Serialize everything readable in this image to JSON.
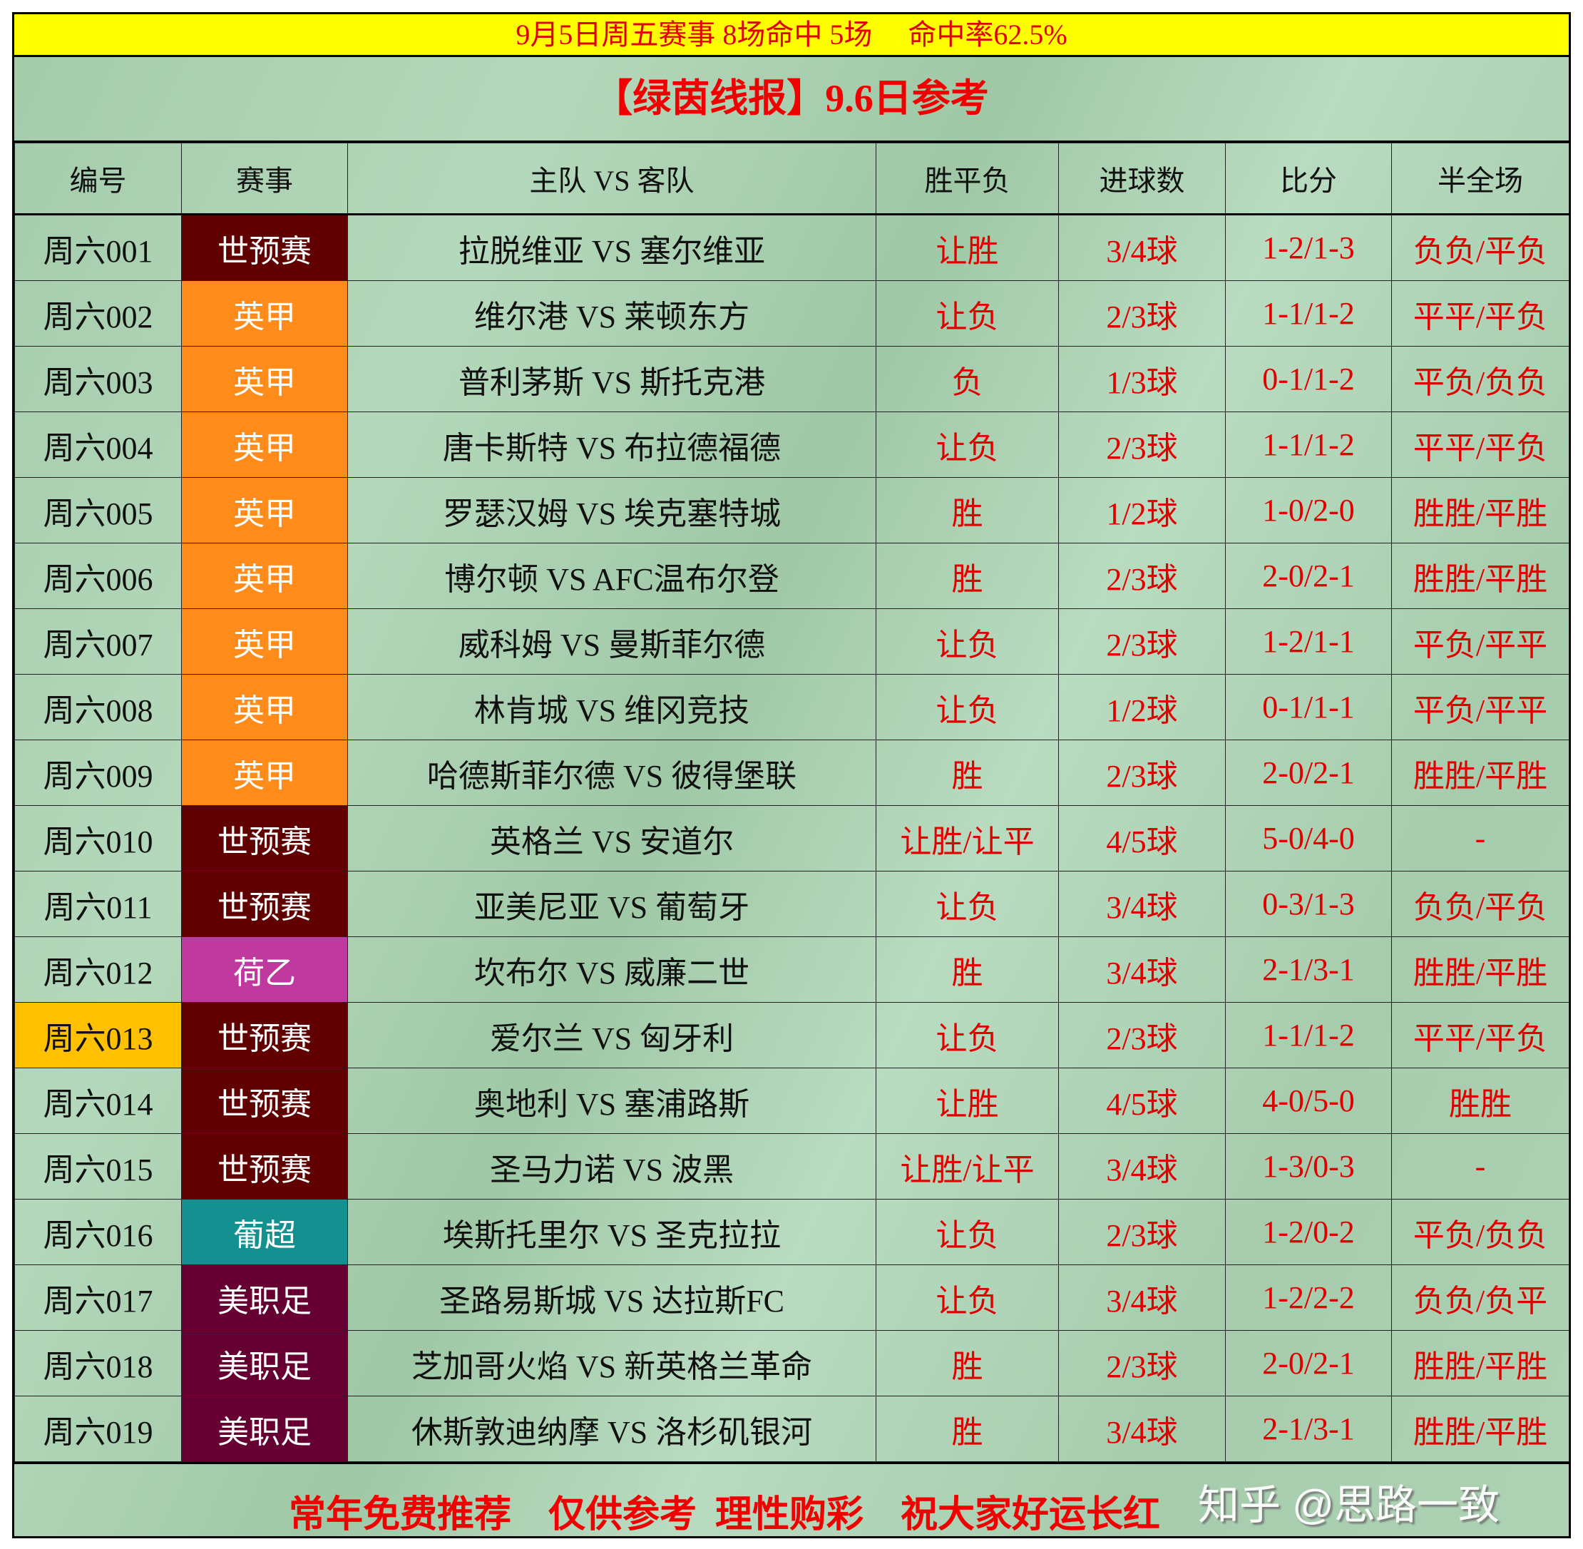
{
  "summary": "9月5日周五赛事 8场命中 5场     命中率62.5%",
  "title": "【绿茵线报】9.6日参考",
  "headers": [
    "编号",
    "赛事",
    "主队 VS 客队",
    "胜平负",
    "进球数",
    "比分",
    "半全场"
  ],
  "league_colors": {
    "世预赛": "#600000",
    "英甲": "#ff8c1a",
    "荷乙": "#c0399f",
    "葡超": "#13908f",
    "美职足": "#660033"
  },
  "highlight_color": "#ffc000",
  "rows": [
    {
      "id": "周六001",
      "league": "世预赛",
      "match": "拉脱维亚 VS 塞尔维亚",
      "result": "让胜",
      "goals": "3/4球",
      "score": "1-2/1-3",
      "htft": "负负/平负"
    },
    {
      "id": "周六002",
      "league": "英甲",
      "match": "维尔港 VS 莱顿东方",
      "result": "让负",
      "goals": "2/3球",
      "score": "1-1/1-2",
      "htft": "平平/平负"
    },
    {
      "id": "周六003",
      "league": "英甲",
      "match": "普利茅斯 VS 斯托克港",
      "result": "负",
      "goals": "1/3球",
      "score": "0-1/1-2",
      "htft": "平负/负负"
    },
    {
      "id": "周六004",
      "league": "英甲",
      "match": "唐卡斯特 VS 布拉德福德",
      "result": "让负",
      "goals": "2/3球",
      "score": "1-1/1-2",
      "htft": "平平/平负"
    },
    {
      "id": "周六005",
      "league": "英甲",
      "match": "罗瑟汉姆 VS 埃克塞特城",
      "result": "胜",
      "goals": "1/2球",
      "score": "1-0/2-0",
      "htft": "胜胜/平胜"
    },
    {
      "id": "周六006",
      "league": "英甲",
      "match": "博尔顿 VS AFC温布尔登",
      "result": "胜",
      "goals": "2/3球",
      "score": "2-0/2-1",
      "htft": "胜胜/平胜"
    },
    {
      "id": "周六007",
      "league": "英甲",
      "match": "威科姆 VS 曼斯菲尔德",
      "result": "让负",
      "goals": "2/3球",
      "score": "1-2/1-1",
      "htft": "平负/平平"
    },
    {
      "id": "周六008",
      "league": "英甲",
      "match": "林肯城 VS 维冈竞技",
      "result": "让负",
      "goals": "1/2球",
      "score": "0-1/1-1",
      "htft": "平负/平平"
    },
    {
      "id": "周六009",
      "league": "英甲",
      "match": "哈德斯菲尔德 VS 彼得堡联",
      "result": "胜",
      "goals": "2/3球",
      "score": "2-0/2-1",
      "htft": "胜胜/平胜"
    },
    {
      "id": "周六010",
      "league": "世预赛",
      "match": "英格兰 VS 安道尔",
      "result": "让胜/让平",
      "goals": "4/5球",
      "score": "5-0/4-0",
      "htft": "-"
    },
    {
      "id": "周六011",
      "league": "世预赛",
      "match": "亚美尼亚 VS 葡萄牙",
      "result": "让负",
      "goals": "3/4球",
      "score": "0-3/1-3",
      "htft": "负负/平负"
    },
    {
      "id": "周六012",
      "league": "荷乙",
      "match": "坎布尔 VS 威廉二世",
      "result": "胜",
      "goals": "3/4球",
      "score": "2-1/3-1",
      "htft": "胜胜/平胜"
    },
    {
      "id": "周六013",
      "league": "世预赛",
      "match": "爱尔兰 VS 匈牙利",
      "result": "让负",
      "goals": "2/3球",
      "score": "1-1/1-2",
      "htft": "平平/平负",
      "highlight": true
    },
    {
      "id": "周六014",
      "league": "世预赛",
      "match": "奥地利 VS 塞浦路斯",
      "result": "让胜",
      "goals": "4/5球",
      "score": "4-0/5-0",
      "htft": "胜胜"
    },
    {
      "id": "周六015",
      "league": "世预赛",
      "match": "圣马力诺 VS 波黑",
      "result": "让胜/让平",
      "goals": "3/4球",
      "score": "1-3/0-3",
      "htft": "-"
    },
    {
      "id": "周六016",
      "league": "葡超",
      "match": "埃斯托里尔 VS 圣克拉拉",
      "result": "让负",
      "goals": "2/3球",
      "score": "1-2/0-2",
      "htft": "平负/负负"
    },
    {
      "id": "周六017",
      "league": "美职足",
      "match": "圣路易斯城 VS 达拉斯FC",
      "result": "让负",
      "goals": "3/4球",
      "score": "1-2/2-2",
      "htft": "负负/负平"
    },
    {
      "id": "周六018",
      "league": "美职足",
      "match": "芝加哥火焰 VS 新英格兰革命",
      "result": "胜",
      "goals": "2/3球",
      "score": "2-0/2-1",
      "htft": "胜胜/平胜"
    },
    {
      "id": "周六019",
      "league": "美职足",
      "match": "休斯敦迪纳摩 VS 洛杉矶银河",
      "result": "胜",
      "goals": "3/4球",
      "score": "2-1/3-1",
      "htft": "胜胜/平胜"
    }
  ],
  "footer": "常年免费推荐    仅供参考  理性购彩    祝大家好运长红",
  "watermark": "知乎 @思路一致"
}
